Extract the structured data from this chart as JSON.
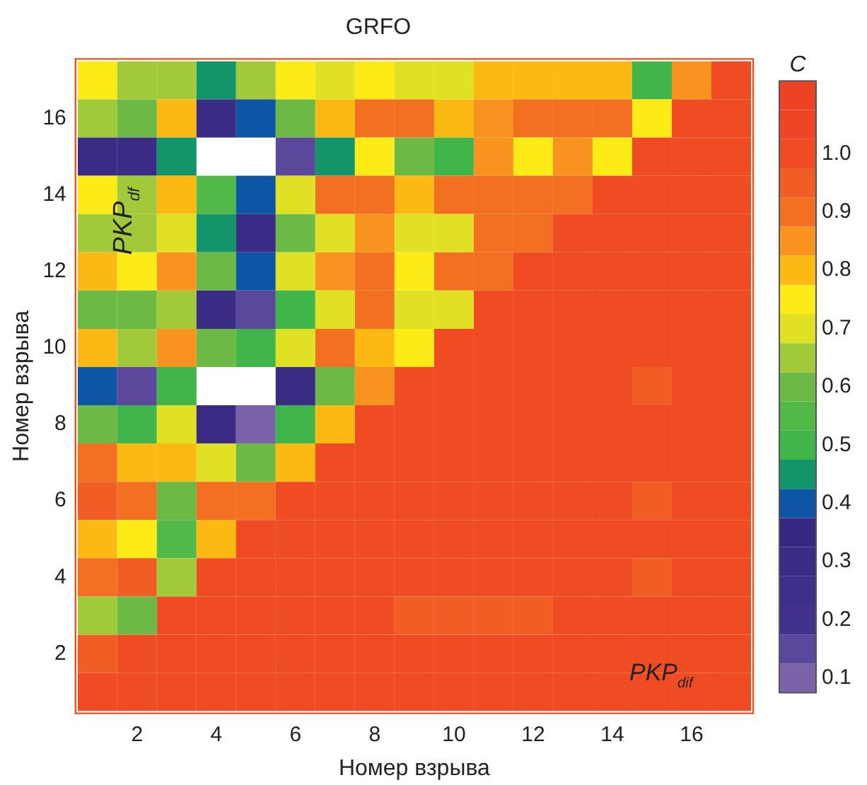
{
  "chart_data": {
    "type": "heatmap",
    "title": "GRFO",
    "xlabel": "Номер взрыва",
    "ylabel": "Номер взрыва",
    "clabel": "C",
    "x": [
      1,
      2,
      3,
      4,
      5,
      6,
      7,
      8,
      9,
      10,
      11,
      12,
      13,
      14,
      15,
      16,
      17
    ],
    "y": [
      17,
      16,
      15,
      14,
      13,
      12,
      11,
      10,
      9,
      8,
      7,
      6,
      5,
      4,
      3,
      2,
      1
    ],
    "xlim": [
      0.5,
      17.5
    ],
    "ylim": [
      0.5,
      17.5
    ],
    "xticks": [
      2,
      4,
      6,
      8,
      10,
      12,
      14,
      16
    ],
    "yticks": [
      2,
      4,
      6,
      8,
      10,
      12,
      14,
      16
    ],
    "clim": [
      0.075,
      1.125
    ],
    "cticks": [
      {
        "value": 0.1,
        "label": "0.1"
      },
      {
        "value": 0.2,
        "label": "0.2"
      },
      {
        "value": 0.3,
        "label": "0.3"
      },
      {
        "value": 0.4,
        "label": "0.4"
      },
      {
        "value": 0.5,
        "label": "0.5"
      },
      {
        "value": 0.6,
        "label": "0.6"
      },
      {
        "value": 0.7,
        "label": "0.7"
      },
      {
        "value": 0.8,
        "label": "0.8"
      },
      {
        "value": 0.9,
        "label": "0.9"
      },
      {
        "value": 1,
        "label": "1.0"
      }
    ],
    "cells": [
      [
        0.75,
        0.65,
        0.65,
        0.45,
        0.65,
        0.75,
        0.7,
        0.75,
        0.7,
        0.7,
        0.8,
        0.8,
        0.8,
        0.8,
        0.5,
        0.85,
        1.0
      ],
      [
        0.65,
        0.6,
        0.8,
        0.3,
        0.4,
        0.6,
        0.8,
        0.9,
        0.9,
        0.8,
        0.85,
        0.9,
        0.9,
        0.9,
        0.75,
        1.0,
        1.0
      ],
      [
        0.3,
        0.3,
        0.45,
        null,
        null,
        0.15,
        0.45,
        0.75,
        0.6,
        0.5,
        0.85,
        0.75,
        0.85,
        0.75,
        1.0,
        1.0,
        1.0
      ],
      [
        0.75,
        0.65,
        0.8,
        0.55,
        0.4,
        0.7,
        0.9,
        0.9,
        0.8,
        0.9,
        0.9,
        0.9,
        0.9,
        1.0,
        1.0,
        1.0,
        1.0
      ],
      [
        0.65,
        0.65,
        0.7,
        0.45,
        0.3,
        0.6,
        0.7,
        0.85,
        0.7,
        0.7,
        0.9,
        0.9,
        1.0,
        1.0,
        1.0,
        1.0,
        1.0
      ],
      [
        0.8,
        0.75,
        0.85,
        0.6,
        0.4,
        0.7,
        0.85,
        0.9,
        0.75,
        0.9,
        0.9,
        1.0,
        1.0,
        1.0,
        1.0,
        1.0,
        1.0
      ],
      [
        0.6,
        0.6,
        0.65,
        0.3,
        0.15,
        0.5,
        0.7,
        0.9,
        0.7,
        0.7,
        1.0,
        1.0,
        1.0,
        1.0,
        1.0,
        1.0,
        1.0
      ],
      [
        0.8,
        0.65,
        0.85,
        0.6,
        0.5,
        0.7,
        0.9,
        0.8,
        0.75,
        1.0,
        1.0,
        1.0,
        1.0,
        1.0,
        1.0,
        1.0,
        1.0
      ],
      [
        0.4,
        0.15,
        0.5,
        null,
        null,
        0.3,
        0.6,
        0.85,
        1.0,
        1.0,
        1.0,
        1.0,
        1.0,
        1.0,
        0.95,
        1.0,
        1.0
      ],
      [
        0.6,
        0.5,
        0.7,
        0.3,
        0.1,
        0.5,
        0.8,
        1.0,
        1.0,
        1.0,
        1.0,
        1.0,
        1.0,
        1.0,
        1.0,
        1.0,
        1.0
      ],
      [
        0.9,
        0.8,
        0.8,
        0.7,
        0.6,
        0.8,
        1.0,
        1.0,
        1.0,
        1.0,
        1.0,
        1.0,
        1.0,
        1.0,
        1.0,
        1.0,
        1.0
      ],
      [
        0.95,
        0.9,
        0.6,
        0.9,
        0.9,
        1.0,
        1.0,
        1.0,
        1.0,
        1.0,
        1.0,
        1.0,
        1.0,
        1.0,
        0.95,
        1.0,
        1.0
      ],
      [
        0.8,
        0.75,
        0.55,
        0.8,
        1.0,
        1.0,
        1.0,
        1.0,
        1.0,
        1.0,
        1.0,
        1.0,
        1.0,
        1.0,
        1.0,
        1.0,
        1.0
      ],
      [
        0.9,
        0.95,
        0.65,
        1.0,
        1.0,
        1.0,
        1.0,
        1.0,
        1.0,
        1.0,
        1.0,
        1.0,
        1.0,
        1.0,
        0.95,
        1.0,
        1.0
      ],
      [
        0.65,
        0.6,
        1.0,
        1.0,
        1.0,
        1.0,
        1.0,
        1.0,
        0.95,
        0.95,
        0.95,
        0.95,
        1.0,
        1.0,
        1.0,
        1.0,
        1.0
      ],
      [
        0.95,
        1.0,
        1.0,
        1.0,
        1.0,
        1.0,
        1.0,
        1.0,
        1.0,
        1.0,
        1.0,
        1.0,
        1.0,
        1.0,
        1.0,
        1.0,
        1.0
      ],
      [
        1.0,
        1.0,
        1.0,
        1.0,
        1.0,
        1.0,
        1.0,
        1.0,
        1.0,
        1.0,
        1.0,
        1.0,
        1.0,
        1.0,
        1.0,
        1.0,
        1.0
      ]
    ],
    "annotations": [
      "PKP$_{df}$",
      "PKP$_{dif}$"
    ]
  }
}
